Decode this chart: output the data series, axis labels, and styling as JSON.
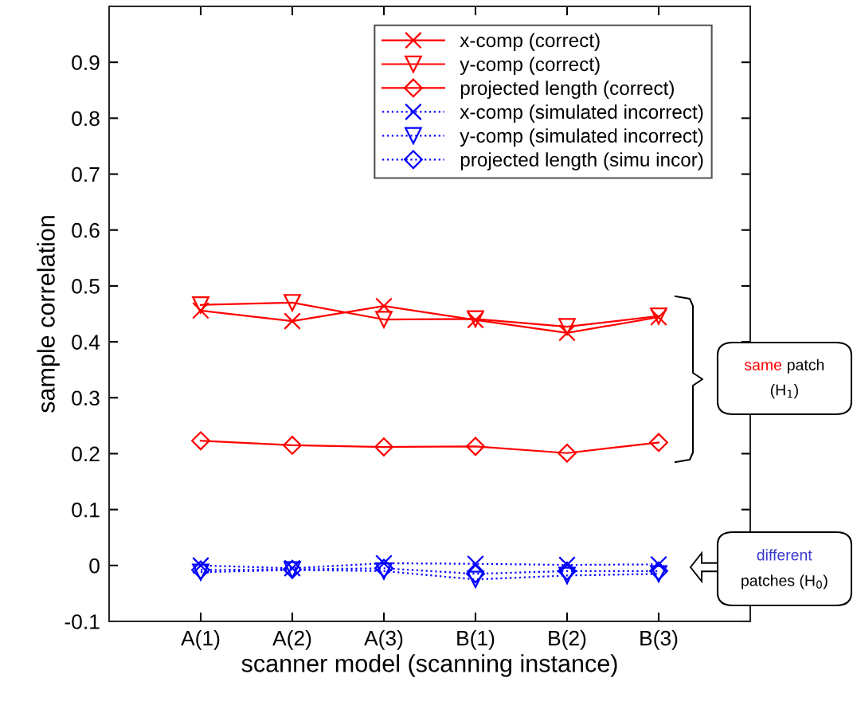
{
  "chart_data": {
    "type": "line",
    "xlabel": "scanner model (scanning instance)",
    "ylabel": "sample correlation",
    "categories": [
      "A(1)",
      "A(2)",
      "A(3)",
      "B(1)",
      "B(2)",
      "B(3)"
    ],
    "series": [
      {
        "name": "x-comp (correct)",
        "color": "#ff0000",
        "marker": "cross",
        "line_style": "solid",
        "values": [
          0.456,
          0.437,
          0.464,
          0.439,
          0.416,
          0.444
        ]
      },
      {
        "name": "y-comp (correct)",
        "color": "#ff0000",
        "marker": "triangle",
        "line_style": "solid",
        "values": [
          0.466,
          0.47,
          0.44,
          0.441,
          0.427,
          0.446
        ]
      },
      {
        "name": "projected length (correct)",
        "color": "#ff0000",
        "marker": "diamond",
        "line_style": "solid",
        "values": [
          0.223,
          0.215,
          0.212,
          0.213,
          0.201,
          0.22
        ]
      },
      {
        "name": "x-comp (simulated incorrect)",
        "color": "#0000ff",
        "marker": "cross",
        "line_style": "dotted",
        "values": [
          0.0,
          -0.005,
          0.004,
          0.003,
          0.001,
          0.002
        ]
      },
      {
        "name": "y-comp (simulated incorrect)",
        "color": "#0000ff",
        "marker": "triangle",
        "line_style": "dotted",
        "values": [
          -0.012,
          -0.008,
          -0.01,
          -0.025,
          -0.018,
          -0.015
        ]
      },
      {
        "name": "projected length (simu incor)",
        "color": "#0000ff",
        "marker": "diamond",
        "line_style": "dotted",
        "values": [
          -0.008,
          -0.007,
          -0.005,
          -0.015,
          -0.01,
          -0.01
        ]
      }
    ],
    "ylim": [
      -0.1,
      1.0
    ],
    "yticks": [
      {
        "value": -0.1,
        "label": "-0.1"
      },
      0,
      0.1,
      0.2,
      0.3,
      0.4,
      0.5,
      0.6,
      0.7,
      0.8,
      0.9
    ],
    "grid": false,
    "legend": "top right",
    "annotations": [
      "same patch (H$_{1}$)",
      "different patches (H$_{0}$)"
    ]
  }
}
